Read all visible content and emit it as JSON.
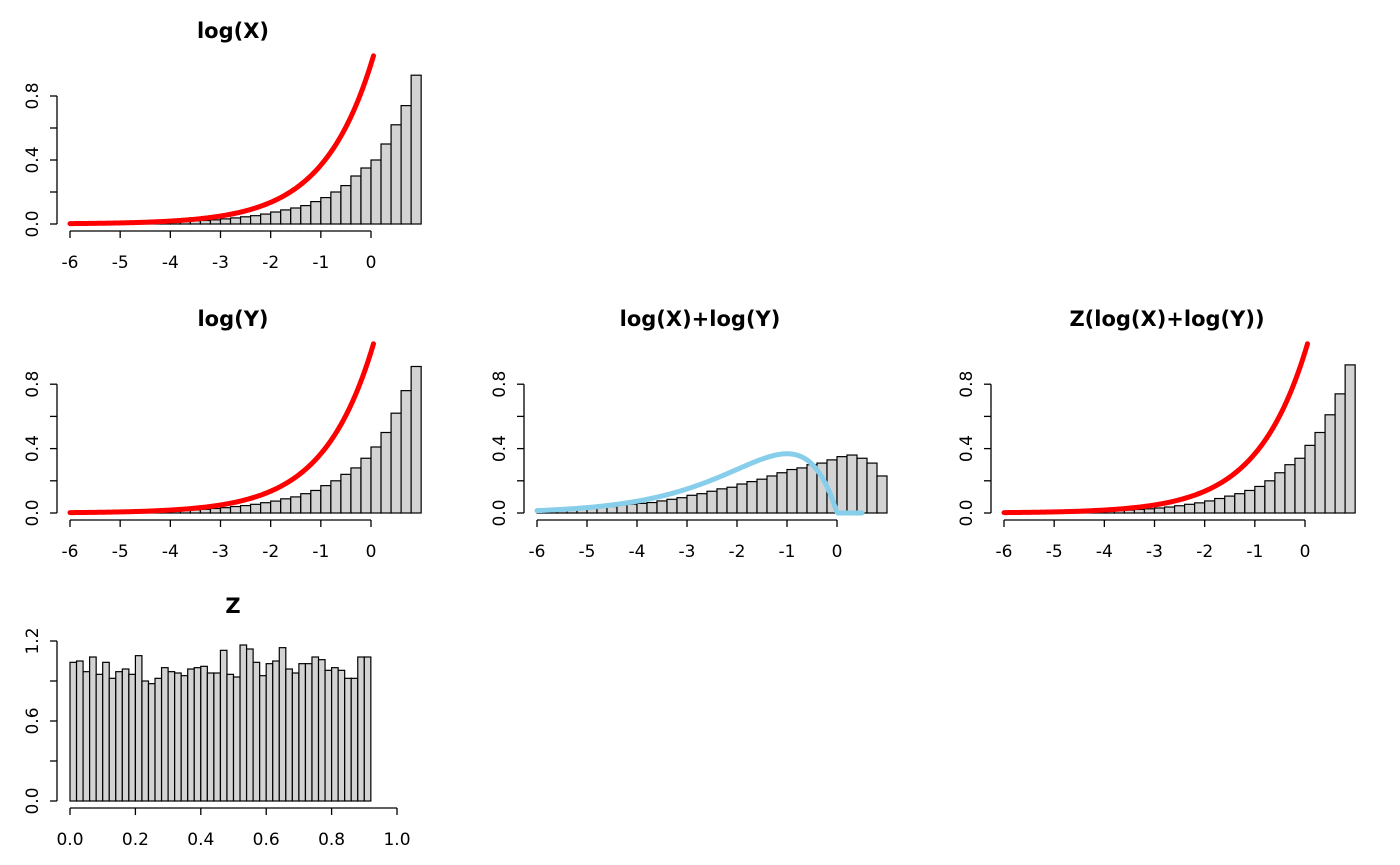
{
  "chart_data": [
    {
      "type": "bar",
      "title": "log(X)",
      "hist_color": "#d3d3d3",
      "overlay_color": "#ff0000",
      "xlim": [
        -6,
        0
      ],
      "ylim": [
        0,
        1
      ],
      "x_ticks": [
        "-6",
        "-5",
        "-4",
        "-3",
        "-2",
        "-1",
        "0"
      ],
      "y_ticks": [
        "0.0",
        "0.4",
        "0.8"
      ],
      "bins": {
        "start": -6,
        "width": 0.2
      },
      "values": [
        0.003,
        0.002,
        0.004,
        0.004,
        0.005,
        0.005,
        0.006,
        0.008,
        0.009,
        0.011,
        0.013,
        0.015,
        0.02,
        0.022,
        0.026,
        0.032,
        0.038,
        0.045,
        0.052,
        0.062,
        0.075,
        0.088,
        0.1,
        0.115,
        0.14,
        0.165,
        0.2,
        0.24,
        0.3,
        0.35,
        0.4,
        0.5,
        0.62,
        0.74,
        0.93
      ],
      "curve": {
        "type": "exp",
        "rate": 1,
        "color": "#ff0000"
      }
    },
    {
      "type": "bar",
      "title": "log(Y)",
      "hist_color": "#d3d3d3",
      "overlay_color": "#ff0000",
      "xlim": [
        -6,
        0
      ],
      "ylim": [
        0,
        1
      ],
      "x_ticks": [
        "-6",
        "-5",
        "-4",
        "-3",
        "-2",
        "-1",
        "0"
      ],
      "y_ticks": [
        "0.0",
        "0.4",
        "0.8"
      ],
      "bins": {
        "start": -6,
        "width": 0.2
      },
      "values": [
        0.003,
        0.002,
        0.003,
        0.004,
        0.005,
        0.006,
        0.007,
        0.008,
        0.009,
        0.011,
        0.014,
        0.016,
        0.019,
        0.023,
        0.028,
        0.033,
        0.04,
        0.046,
        0.054,
        0.064,
        0.074,
        0.088,
        0.1,
        0.12,
        0.14,
        0.17,
        0.2,
        0.24,
        0.28,
        0.34,
        0.41,
        0.5,
        0.62,
        0.76,
        0.91
      ],
      "curve": {
        "type": "exp",
        "rate": 1,
        "color": "#ff0000"
      }
    },
    {
      "type": "bar",
      "title": "log(X)+log(Y)",
      "hist_color": "#d3d3d3",
      "overlay_color": "#87ceeb",
      "xlim": [
        -6,
        0.5
      ],
      "ylim": [
        0,
        1
      ],
      "x_ticks": [
        "-6",
        "-5",
        "-4",
        "-3",
        "-2",
        "-1",
        "0"
      ],
      "y_ticks": [
        "0.0",
        "0.4",
        "0.8"
      ],
      "bins": {
        "start": -6,
        "width": 0.2
      },
      "values": [
        0.01,
        0.015,
        0.018,
        0.022,
        0.025,
        0.03,
        0.035,
        0.04,
        0.05,
        0.055,
        0.06,
        0.065,
        0.075,
        0.085,
        0.095,
        0.11,
        0.12,
        0.135,
        0.15,
        0.16,
        0.18,
        0.195,
        0.21,
        0.23,
        0.25,
        0.27,
        0.28,
        0.3,
        0.31,
        0.33,
        0.35,
        0.36,
        0.34,
        0.31,
        0.23
      ],
      "curve": {
        "type": "sum",
        "color": "#87ceeb",
        "xmax": 0.5
      }
    },
    {
      "type": "bar",
      "title": "Z(log(X)+log(Y))",
      "hist_color": "#d3d3d3",
      "overlay_color": "#ff0000",
      "xlim": [
        -6,
        0
      ],
      "ylim": [
        0,
        1
      ],
      "x_ticks": [
        "-6",
        "-5",
        "-4",
        "-3",
        "-2",
        "-1",
        "0"
      ],
      "y_ticks": [
        "0.0",
        "0.4",
        "0.8"
      ],
      "bins": {
        "start": -6,
        "width": 0.2
      },
      "values": [
        0.003,
        0.003,
        0.003,
        0.004,
        0.005,
        0.006,
        0.006,
        0.008,
        0.009,
        0.011,
        0.013,
        0.015,
        0.018,
        0.022,
        0.026,
        0.031,
        0.037,
        0.045,
        0.054,
        0.063,
        0.075,
        0.09,
        0.105,
        0.12,
        0.14,
        0.165,
        0.2,
        0.25,
        0.3,
        0.34,
        0.42,
        0.5,
        0.61,
        0.74,
        0.92
      ],
      "curve": {
        "type": "exp",
        "rate": 1,
        "color": "#ff0000"
      }
    },
    {
      "type": "bar",
      "title": "Z",
      "hist_color": "#d3d3d3",
      "xlim": [
        0,
        1
      ],
      "ylim": [
        0,
        1.2
      ],
      "x_ticks": [
        "0.0",
        "0.2",
        "0.4",
        "0.6",
        "0.8",
        "1.0"
      ],
      "y_ticks": [
        "0.0",
        "0.6",
        "1.2"
      ],
      "bins": {
        "start": 0,
        "width": 0.02
      },
      "values": [
        1.04,
        1.05,
        0.97,
        1.08,
        0.95,
        1.04,
        0.92,
        0.97,
        0.99,
        0.95,
        1.09,
        0.9,
        0.88,
        0.92,
        1.0,
        0.97,
        0.96,
        0.94,
        0.99,
        1.0,
        1.01,
        0.96,
        0.96,
        1.13,
        0.95,
        0.93,
        1.17,
        1.14,
        1.04,
        0.94,
        1.03,
        1.05,
        1.15,
        0.99,
        0.96,
        1.03,
        1.03,
        1.08,
        1.06,
        0.98,
        1.0,
        0.98,
        0.92,
        0.92,
        1.08,
        1.08
      ]
    }
  ]
}
